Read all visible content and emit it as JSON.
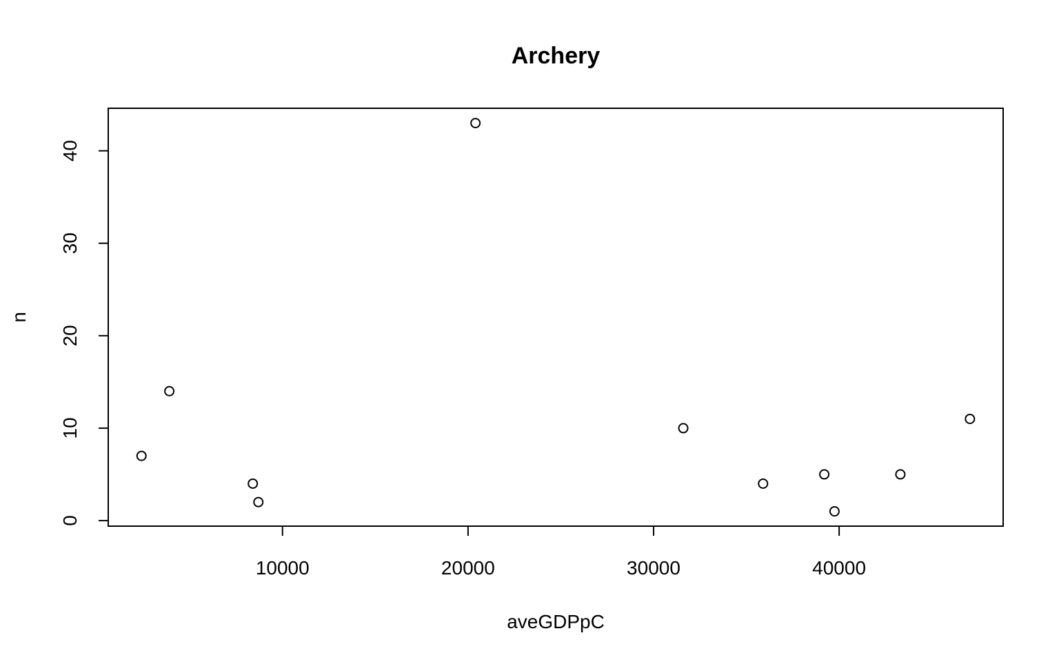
{
  "chart_data": {
    "type": "scatter",
    "title": "Archery",
    "xlabel": "aveGDPpC",
    "ylabel": "n",
    "xlim": [
      608,
      48840
    ],
    "ylim": [
      -0.6,
      44.6
    ],
    "xticks": [
      10000,
      20000,
      30000,
      40000
    ],
    "yticks": [
      0,
      10,
      20,
      30,
      40
    ],
    "grid": false,
    "legend": "none",
    "points": [
      {
        "x": 2400,
        "y": 7
      },
      {
        "x": 3900,
        "y": 14
      },
      {
        "x": 8400,
        "y": 4
      },
      {
        "x": 8700,
        "y": 2
      },
      {
        "x": 20400,
        "y": 43
      },
      {
        "x": 31600,
        "y": 10
      },
      {
        "x": 35900,
        "y": 4
      },
      {
        "x": 39200,
        "y": 5
      },
      {
        "x": 39750,
        "y": 1
      },
      {
        "x": 43300,
        "y": 5
      },
      {
        "x": 47050,
        "y": 11
      }
    ]
  }
}
